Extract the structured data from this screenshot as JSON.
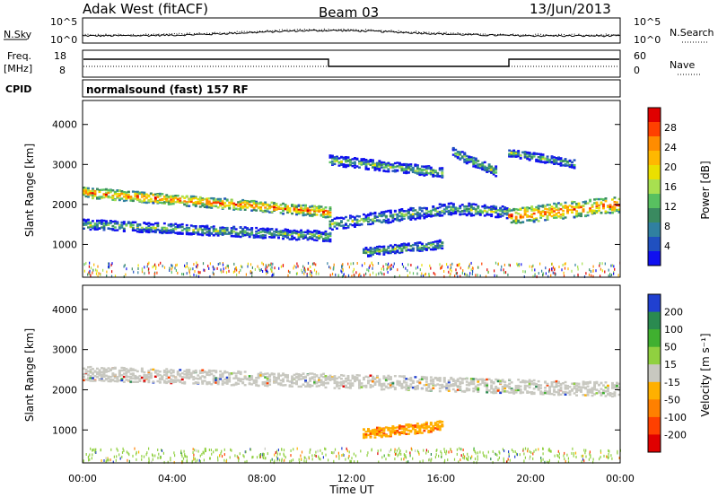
{
  "header": {
    "station": "Adak West (fitACF)",
    "beam": "Beam 03",
    "date": "13/Jun/2013"
  },
  "panels": {
    "nsky": {
      "left_label": "N.Sky",
      "right_label": "N.Search",
      "left_ticks": [
        "10^5",
        "10^0"
      ],
      "right_ticks": [
        "10^5",
        "10^0"
      ]
    },
    "freq": {
      "left_label_1": "Freq.",
      "left_label_2": "[MHz]",
      "right_label": "Nave",
      "left_ticks": [
        "18",
        "8"
      ],
      "right_ticks": [
        "60",
        "0"
      ]
    },
    "cpid": {
      "label": "CPID",
      "text": "normalsound (fast) 157 RF"
    }
  },
  "chart_data": [
    {
      "type": "heatmap",
      "title": "",
      "ylabel": "Slant Range [km]",
      "ylim": [
        180,
        4600
      ],
      "yticks": [
        1000,
        2000,
        3000,
        4000
      ],
      "colorbar_label": "Power [dB]",
      "colorbar_ticks": [
        "28",
        "24",
        "20",
        "16",
        "12",
        "8",
        "4"
      ],
      "colorbar_colors": [
        "#e00000",
        "#ff4000",
        "#ff8c00",
        "#ffb800",
        "#eae000",
        "#a8e050",
        "#58c060",
        "#3a8a60",
        "#3080a0",
        "#2050c0",
        "#1010f0"
      ],
      "echo_bands": [
        {
          "t_start": 0.0,
          "t_end": 11.0,
          "r_start_km": 2300,
          "r_end_km": 1800,
          "width_km": 260
        },
        {
          "t_start": 11.0,
          "t_end": 16.5,
          "r_start_km": 1500,
          "r_end_km": 1900,
          "width_km": 300
        },
        {
          "t_start": 16.5,
          "t_end": 19.0,
          "r_start_km": 1900,
          "r_end_km": 1800,
          "width_km": 300
        },
        {
          "t_start": 19.0,
          "t_end": 24.0,
          "r_start_km": 1700,
          "r_end_km": 2000,
          "width_km": 400
        },
        {
          "t_start": 0.0,
          "t_end": 11.0,
          "r_start_km": 1500,
          "r_end_km": 1200,
          "width_km": 250
        },
        {
          "t_start": 12.5,
          "t_end": 16.0,
          "r_start_km": 800,
          "r_end_km": 1000,
          "width_km": 220
        },
        {
          "t_start": 11.0,
          "t_end": 16.0,
          "r_start_km": 3100,
          "r_end_km": 2800,
          "width_km": 250
        },
        {
          "t_start": 16.5,
          "t_end": 18.5,
          "r_start_km": 3300,
          "r_end_km": 2800,
          "width_km": 250
        },
        {
          "t_start": 19.0,
          "t_end": 22.0,
          "r_start_km": 3300,
          "r_end_km": 3000,
          "width_km": 200
        }
      ]
    },
    {
      "type": "heatmap",
      "title": "",
      "ylabel": "Slant Range [km]",
      "ylim": [
        180,
        4600
      ],
      "yticks": [
        1000,
        2000,
        3000,
        4000
      ],
      "colorbar_label": "Velocity [m s⁻¹]",
      "colorbar_ticks": [
        "200",
        "100",
        "50",
        "15",
        "-15",
        "-50",
        "-100",
        "-200"
      ],
      "colorbar_colors": [
        "#2040d0",
        "#2a8a50",
        "#40b030",
        "#90d040",
        "#c8c8c0",
        "#ffb000",
        "#ff8000",
        "#ff4000",
        "#e00000"
      ],
      "echo_bands": [
        {
          "t_start": 0.0,
          "t_end": 24.0,
          "r_start_km": 2400,
          "r_end_km": 2000,
          "width_km": 350,
          "velocity": "ground"
        },
        {
          "t_start": 12.5,
          "t_end": 16.0,
          "r_start_km": 900,
          "r_end_km": 1100,
          "width_km": 250,
          "velocity": "-50"
        }
      ]
    }
  ],
  "xaxis": {
    "ticks": [
      "00:00",
      "04:00",
      "08:00",
      "12:00",
      "16:00",
      "20:00",
      "00:00"
    ],
    "xlabel": "Time UT",
    "xlim_hours": [
      0,
      24
    ]
  }
}
